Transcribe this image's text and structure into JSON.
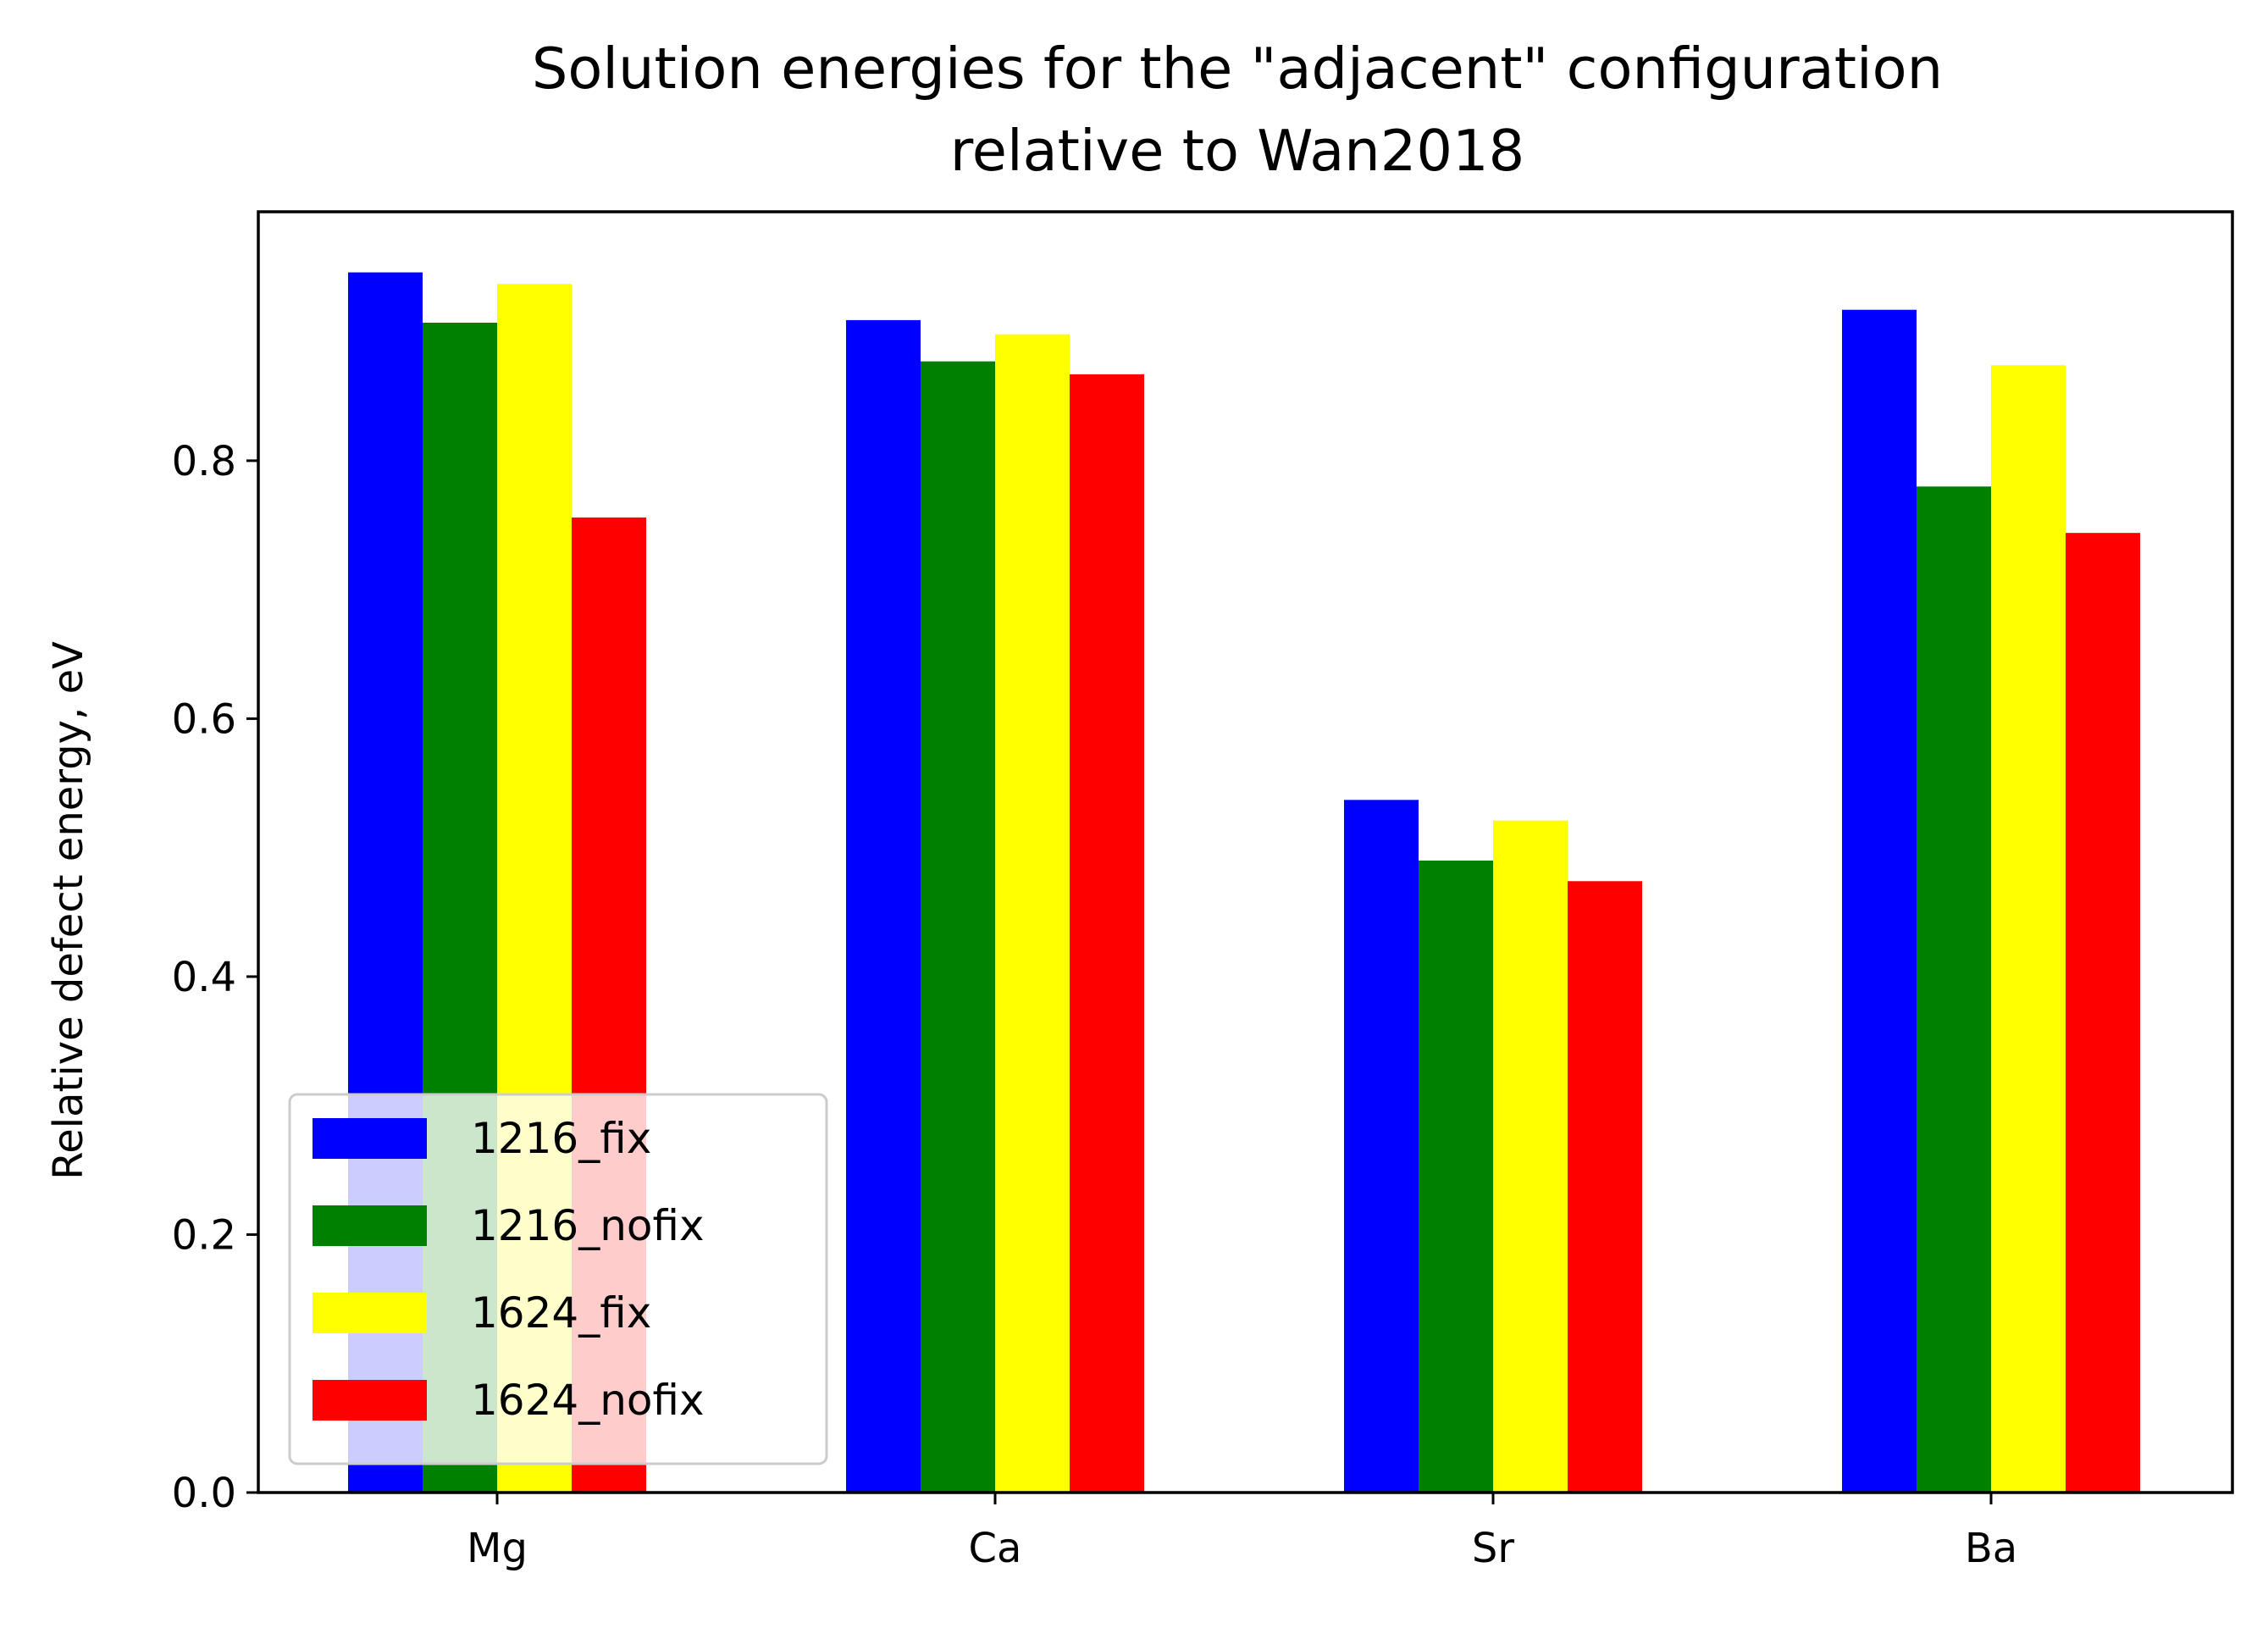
{
  "chart_data": {
    "type": "bar",
    "title": "Solution energies for the \"adjacent\" configuration\nrelative to Wan2018",
    "title_lines": [
      "Solution energies for the \"adjacent\" configuration",
      "relative to Wan2018"
    ],
    "xlabel": "",
    "ylabel": "Relative defect energy, eV",
    "categories": [
      "Mg",
      "Ca",
      "Sr",
      "Ba"
    ],
    "ylim": [
      0,
      0.993
    ],
    "yticks": [
      0.0,
      0.2,
      0.4,
      0.6,
      0.8
    ],
    "ytick_labels": [
      "0.0",
      "0.2",
      "0.4",
      "0.6",
      "0.8"
    ],
    "grid": false,
    "legend_position": "lower-left",
    "series": [
      {
        "name": "1216_fix",
        "color": "#0000ff",
        "values": [
          0.946,
          0.909,
          0.537,
          0.917
        ]
      },
      {
        "name": "1216_nofix",
        "color": "#008000",
        "values": [
          0.907,
          0.877,
          0.49,
          0.78
        ]
      },
      {
        "name": "1624_fix",
        "color": "#ffff00",
        "values": [
          0.937,
          0.898,
          0.521,
          0.874
        ]
      },
      {
        "name": "1624_nofix",
        "color": "#ff0000",
        "values": [
          0.756,
          0.867,
          0.474,
          0.744
        ]
      }
    ]
  }
}
